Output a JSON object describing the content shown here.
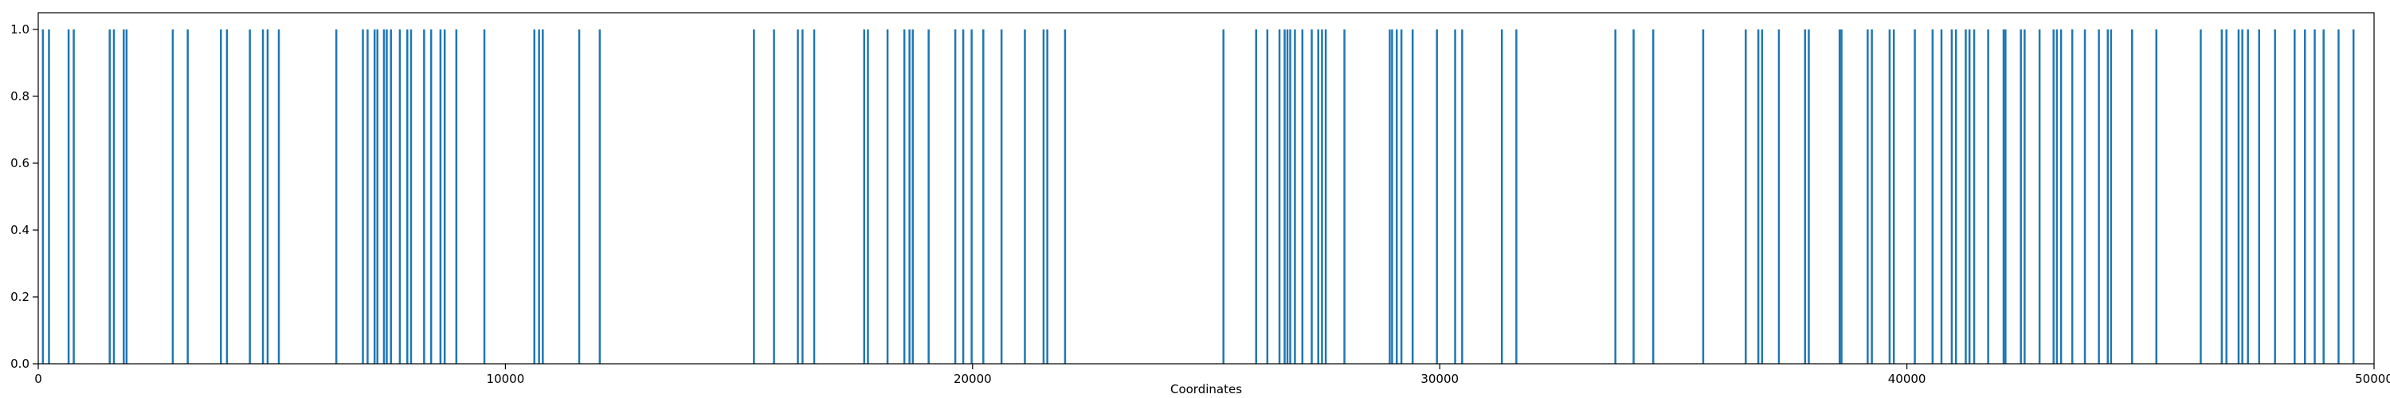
{
  "chart_data": {
    "type": "bar",
    "title": "",
    "xlabel": "Coordinates",
    "ylabel": "",
    "xlim": [
      0,
      50000
    ],
    "ylim": [
      0.0,
      1.05
    ],
    "grid": false,
    "legend": "none",
    "bar_color": "#1f77b4",
    "x_ticks": [
      {
        "value": 0,
        "label": "0"
      },
      {
        "value": 10000,
        "label": "10000"
      },
      {
        "value": 20000,
        "label": "20000"
      },
      {
        "value": 30000,
        "label": "30000"
      },
      {
        "value": 40000,
        "label": "40000"
      },
      {
        "value": 50000,
        "label": "50000"
      }
    ],
    "y_ticks": [
      {
        "value": 0.0,
        "label": "0.0"
      },
      {
        "value": 0.2,
        "label": "0.2"
      },
      {
        "value": 0.4,
        "label": "0.4"
      },
      {
        "value": 0.6,
        "label": "0.6"
      },
      {
        "value": 0.8,
        "label": "0.8"
      },
      {
        "value": 1.0,
        "label": "1.0"
      }
    ],
    "series": [
      {
        "values_y": 1,
        "x": [
          100,
          230,
          650,
          760,
          1530,
          1620,
          1830,
          1890,
          2880,
          3200,
          3910,
          4040,
          4530,
          4810,
          4910,
          5150,
          6380,
          6950,
          7050,
          7200,
          7260,
          7400,
          7460,
          7550,
          7740,
          7900,
          7980,
          8260,
          8410,
          8610,
          8700,
          8950,
          9550,
          10620,
          10720,
          10800,
          11580,
          12020,
          15320,
          15750,
          16260,
          16360,
          16610,
          17680,
          17760,
          18180,
          18540,
          18650,
          18720,
          19060,
          19630,
          19800,
          19980,
          20230,
          20620,
          21120,
          21520,
          21600,
          21980,
          25370,
          26070,
          26310,
          26570,
          26680,
          26740,
          26800,
          26900,
          27060,
          27260,
          27400,
          27480,
          27560,
          27960,
          28930,
          28980,
          29080,
          29180,
          29420,
          29940,
          30330,
          30480,
          31330,
          31640,
          33760,
          34150,
          34570,
          35640,
          36550,
          36820,
          36900,
          37260,
          37820,
          37900,
          38560,
          38600,
          39160,
          39250,
          39630,
          39720,
          40170,
          40550,
          40740,
          40960,
          41050,
          41260,
          41340,
          41440,
          41740,
          42070,
          42110,
          42440,
          42520,
          42840,
          43140,
          43210,
          43300,
          43540,
          43810,
          44110,
          44300,
          44370,
          44820,
          45340,
          46290,
          46740,
          46840,
          47100,
          47180,
          47300,
          47540,
          47880,
          48300,
          48520,
          48730,
          48920,
          49240,
          49560
        ]
      }
    ]
  }
}
